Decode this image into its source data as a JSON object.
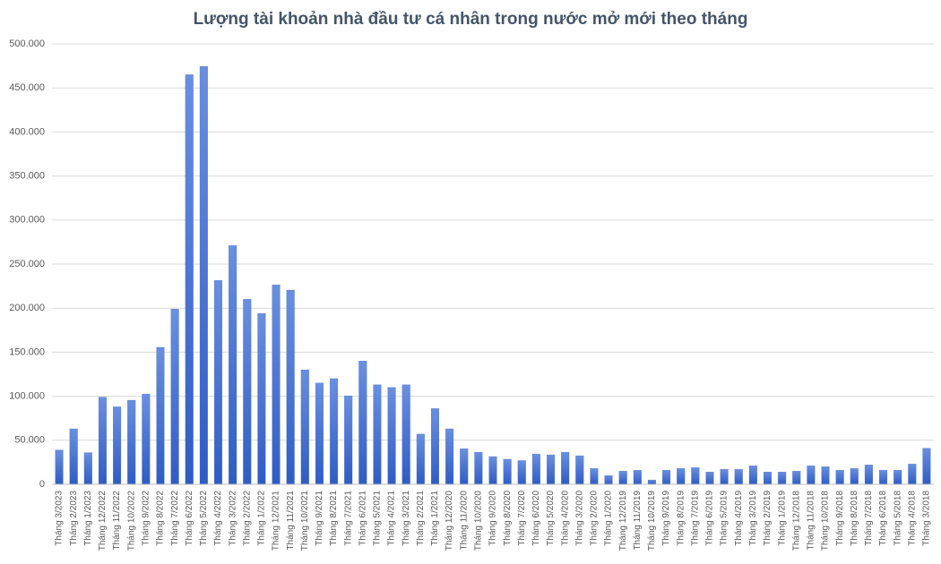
{
  "chart_data": {
    "type": "bar",
    "title": "Lượng tài khoản nhà đầu tư cá nhân trong nước mở mới theo tháng",
    "categories": [
      "Tháng 3/2023",
      "Tháng 2/2023",
      "Tháng 1/2023",
      "Tháng 12/2022",
      "Tháng 11/2022",
      "Tháng 10/2022",
      "Tháng 9/2022",
      "Tháng 8/2022",
      "Tháng 7/2022",
      "Tháng 6/2022",
      "Tháng 5/2022",
      "Tháng 4/2022",
      "Tháng 3/2022",
      "Tháng 2/2022",
      "Tháng 1/2022",
      "Tháng 12/2021",
      "Tháng 11/2021",
      "Tháng 10/2021",
      "Tháng 9/2021",
      "Tháng 8/2021",
      "Tháng 7/2021",
      "Tháng 6/2021",
      "Tháng 5/2021",
      "Tháng 4/2021",
      "Tháng 3/2021",
      "Tháng 2/2021",
      "Tháng 1/2021",
      "Tháng 12/2020",
      "Tháng 11/2020",
      "Tháng 10/2020",
      "Tháng 9/2020",
      "Tháng 8/2020",
      "Tháng 7/2020",
      "Tháng 6/2020",
      "Tháng 5/2020",
      "Tháng 4/2020",
      "Tháng 3/2020",
      "Tháng 2/2020",
      "Tháng 1/2020",
      "Tháng 12/2019",
      "Tháng 11/2019",
      "Tháng 10/2019",
      "Tháng 9/2019",
      "Tháng 8/2019",
      "Tháng 7/2019",
      "Tháng 6/2019",
      "Tháng 5/2019",
      "Tháng 4/2019",
      "Tháng 3/2019",
      "Tháng 2/2019",
      "Tháng 1/2019",
      "Tháng 12/2018",
      "Tháng 11/2018",
      "Tháng 10/2018",
      "Tháng 9/2018",
      "Tháng 8/2018",
      "Tháng 7/2018",
      "Tháng 6/2018",
      "Tháng 5/2018",
      "Tháng 4/2018",
      "Tháng 3/2018"
    ],
    "values": [
      39000,
      63000,
      36000,
      99000,
      88000,
      95500,
      102500,
      155500,
      199000,
      465000,
      474500,
      231500,
      271000,
      210000,
      194000,
      226500,
      220500,
      130000,
      115000,
      120000,
      100500,
      140000,
      113000,
      110000,
      113000,
      57000,
      86000,
      63000,
      40500,
      36500,
      31500,
      28500,
      27000,
      34500,
      33500,
      36500,
      32500,
      18000,
      10000,
      15000,
      16000,
      5000,
      16000,
      18000,
      19000,
      14000,
      17000,
      17000,
      21000,
      14000,
      14000,
      15000,
      21000,
      20000,
      16000,
      18000,
      22000,
      16000,
      16000,
      23000,
      41000
    ],
    "color": "#4472c4",
    "ylim": [
      0,
      500000
    ],
    "yticks": [
      0,
      {
        "value": 50000,
        "label": "50.000"
      },
      {
        "value": 100000,
        "label": "100.000"
      },
      {
        "value": 150000,
        "label": "150.000"
      },
      {
        "value": 200000,
        "label": "200.000"
      },
      {
        "value": 250000,
        "label": "250.000"
      },
      {
        "value": 300000,
        "label": "300.000"
      },
      {
        "value": 350000,
        "label": "350.000"
      },
      {
        "value": 400000,
        "label": "400.000"
      },
      {
        "value": 450000,
        "label": "450.000"
      },
      {
        "value": 500000,
        "label": "500.000"
      }
    ],
    "grid": true
  }
}
